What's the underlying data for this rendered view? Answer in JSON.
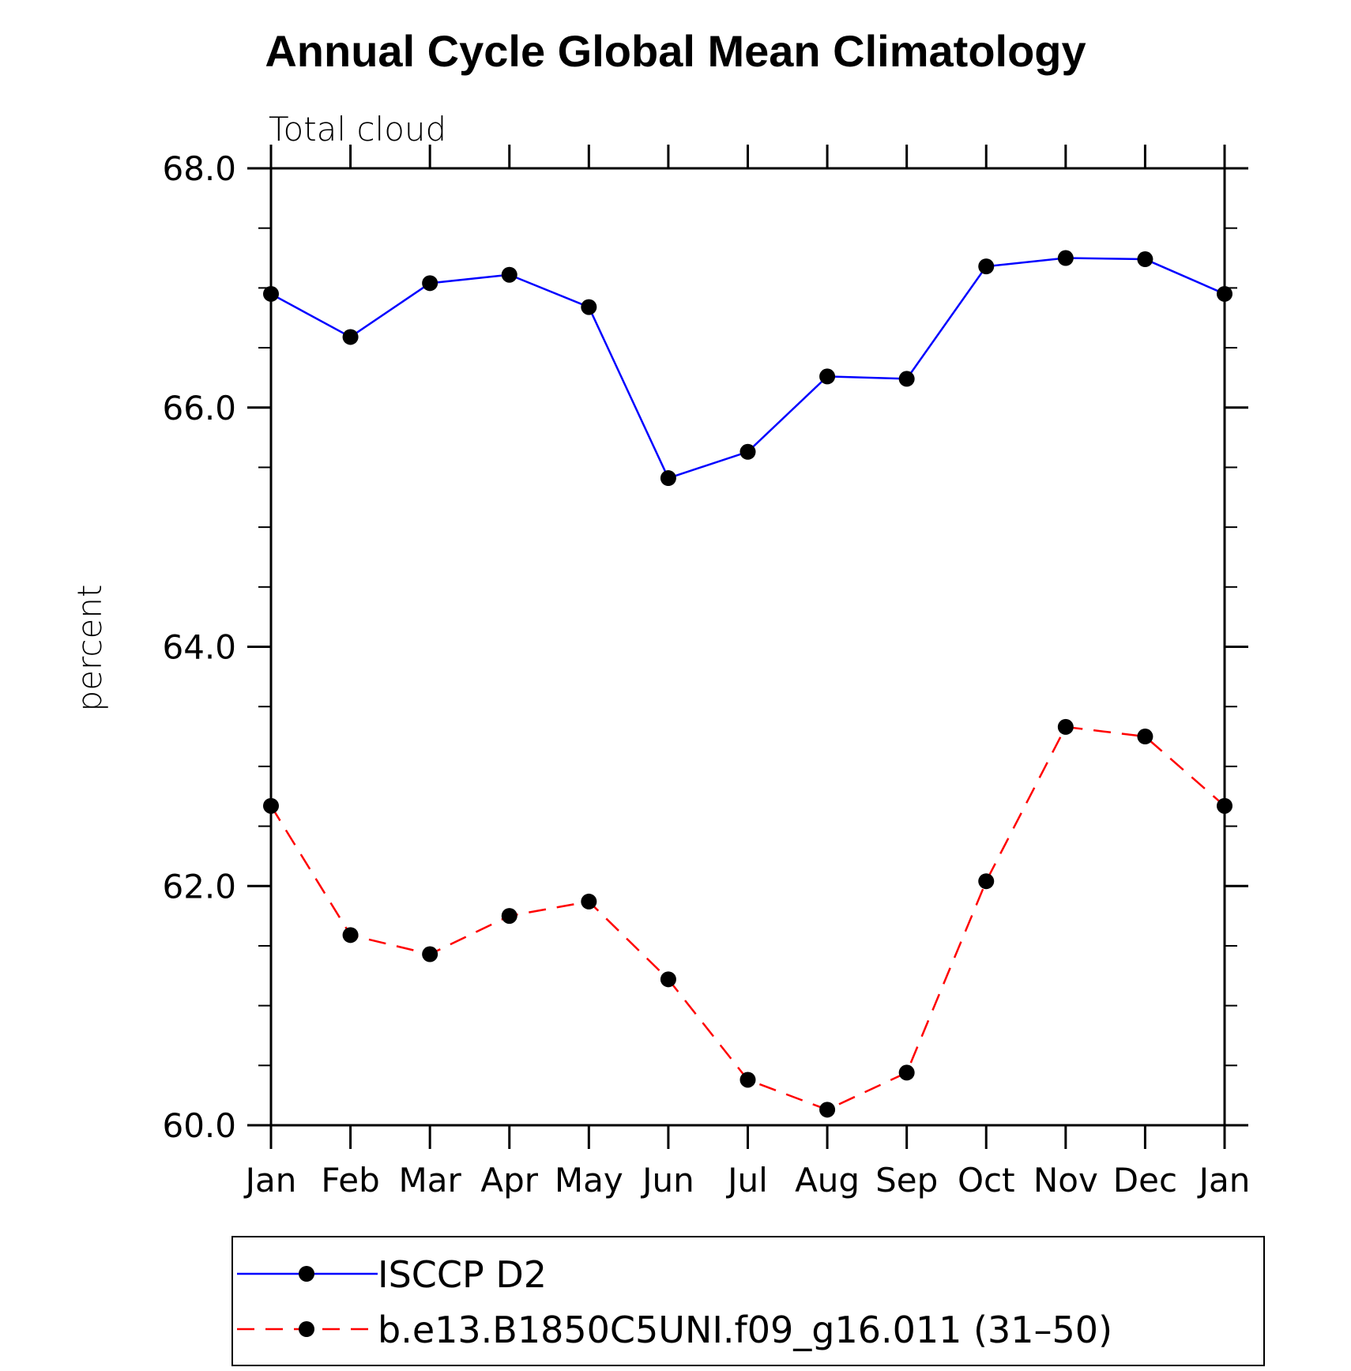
{
  "chart_data": {
    "type": "line",
    "title": "Annual Cycle Global Mean Climatology",
    "subtitle": "Total cloud",
    "ylabel": "percent",
    "xlabel": "",
    "categories": [
      "Jan",
      "Feb",
      "Mar",
      "Apr",
      "May",
      "Jun",
      "Jul",
      "Aug",
      "Sep",
      "Oct",
      "Nov",
      "Dec",
      "Jan"
    ],
    "ylim": [
      60.0,
      68.0
    ],
    "yticks": [
      60.0,
      62.0,
      64.0,
      66.0,
      68.0
    ],
    "ytick_labels": [
      "60.0",
      "62.0",
      "64.0",
      "66.0",
      "68.0"
    ],
    "legend_position": "bottom",
    "series": [
      {
        "name": "ISCCP D2",
        "color": "#0000ff",
        "dashed": false,
        "values": [
          66.95,
          66.59,
          67.04,
          67.11,
          66.84,
          65.41,
          65.63,
          66.26,
          66.24,
          67.18,
          67.25,
          67.24,
          66.95
        ]
      },
      {
        "name": "b.e13.B1850C5UNI.f09_g16.011 (31–50)",
        "color": "#ff0000",
        "dashed": true,
        "values": [
          62.67,
          61.59,
          61.43,
          61.75,
          61.87,
          61.22,
          60.38,
          60.13,
          60.44,
          62.04,
          63.33,
          63.25,
          62.67
        ]
      }
    ]
  }
}
